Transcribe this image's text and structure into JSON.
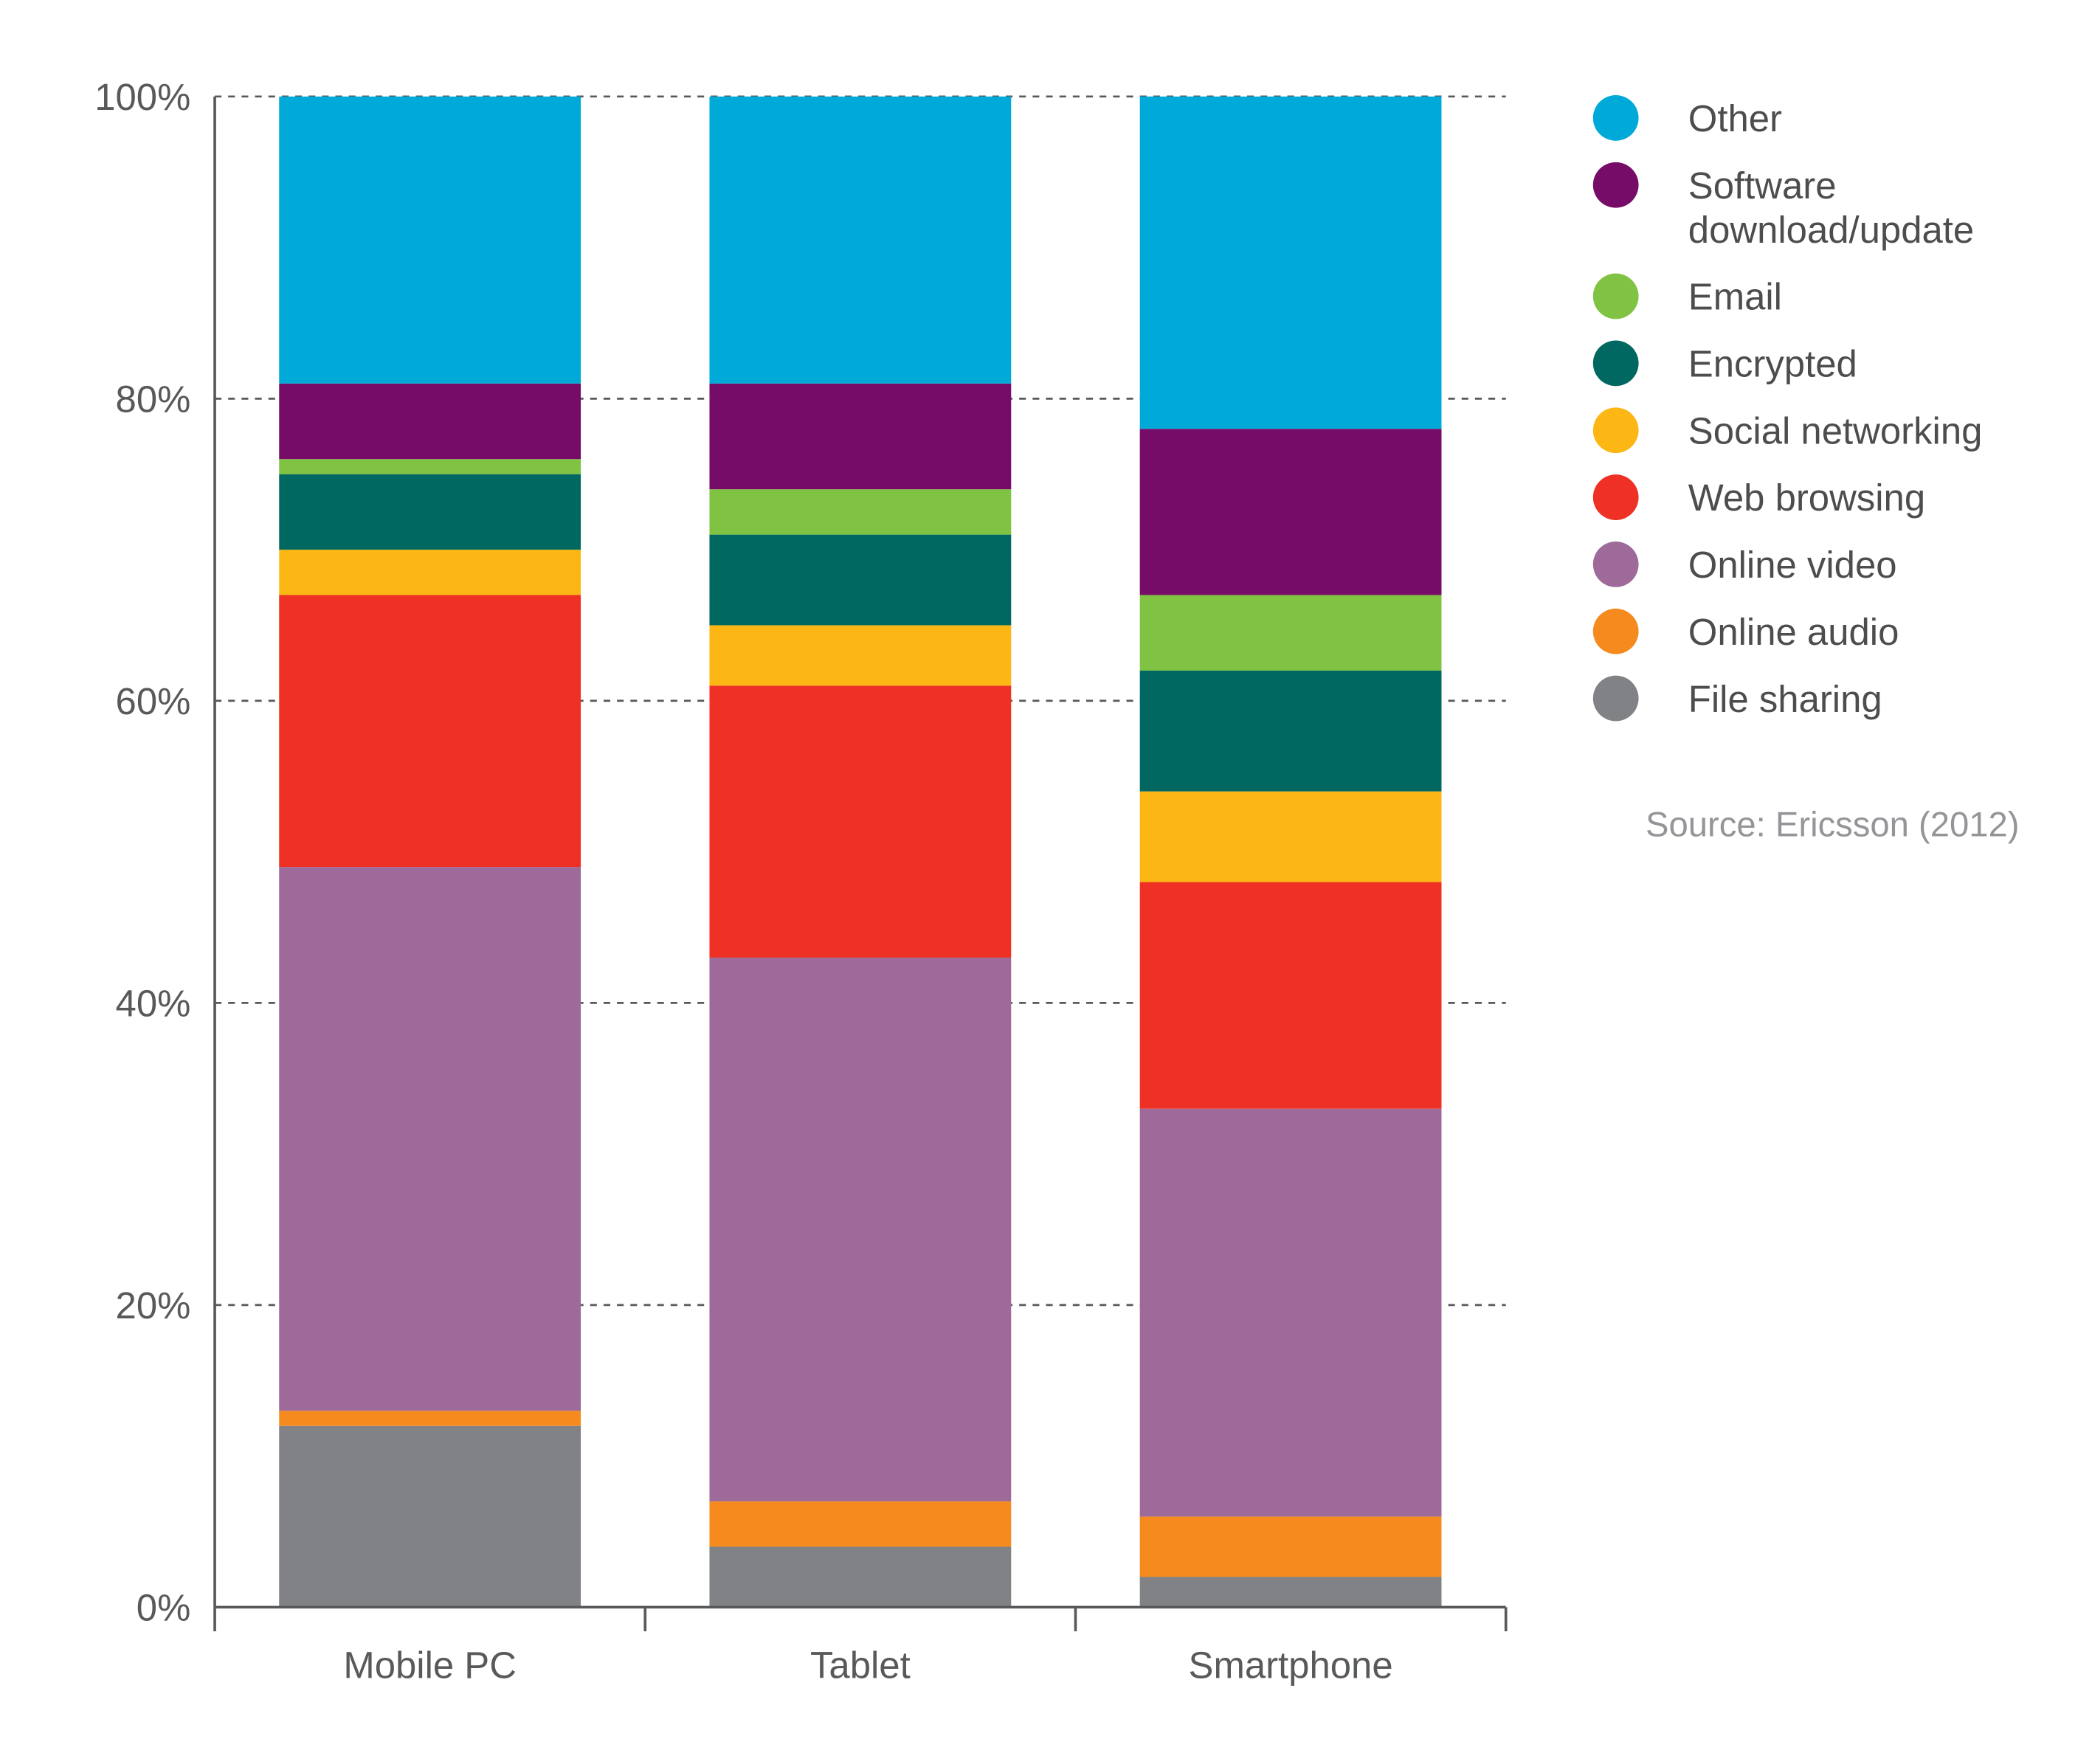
{
  "chart_data": {
    "type": "bar",
    "stacked": true,
    "categories": [
      "Mobile PC",
      "Tablet",
      "Smartphone"
    ],
    "ylim": [
      0,
      100
    ],
    "yticks": [
      "0%",
      "20%",
      "40%",
      "60%",
      "80%",
      "100%"
    ],
    "grid": "dashed horizontal",
    "legend_placement": "right",
    "series": [
      {
        "name": "File sharing",
        "color": "#808285",
        "values": [
          12,
          4,
          2
        ]
      },
      {
        "name": "Online audio",
        "color": "#f58b1f",
        "values": [
          1,
          3,
          4
        ]
      },
      {
        "name": "Online video",
        "color": "#9e6a99",
        "values": [
          36,
          36,
          27
        ]
      },
      {
        "name": "Web browsing",
        "color": "#ee3124",
        "values": [
          18,
          18,
          15
        ]
      },
      {
        "name": "Social networking",
        "color": "#fdb714",
        "values": [
          3,
          4,
          6
        ]
      },
      {
        "name": "Encrypted",
        "color": "#006860",
        "values": [
          5,
          6,
          8
        ]
      },
      {
        "name": "Email",
        "color": "#80c242",
        "values": [
          1,
          3,
          5
        ]
      },
      {
        "name": "Software download/update",
        "color": "#760c68",
        "values": [
          5,
          7,
          11
        ]
      },
      {
        "name": "Other",
        "color": "#00aad8",
        "values": [
          19,
          19,
          22
        ]
      }
    ],
    "legend_lines": {
      "Software download/update": [
        "Software",
        "download/update"
      ]
    },
    "source": "Source: Ericsson (2012)"
  }
}
